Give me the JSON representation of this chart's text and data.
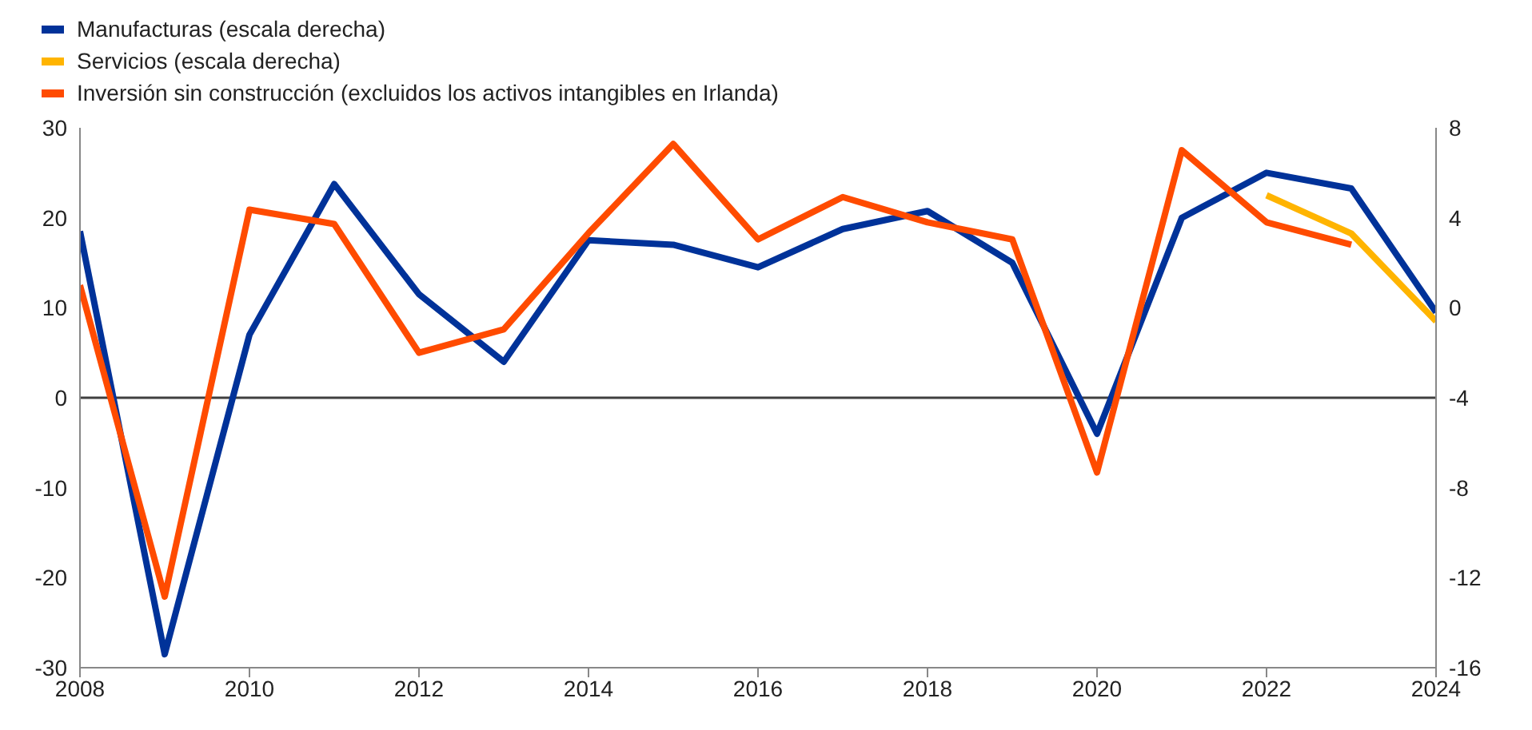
{
  "chart_data": {
    "type": "line",
    "legend": "top left",
    "grid": false,
    "x": [
      2008,
      2009,
      2010,
      2011,
      2012,
      2013,
      2014,
      2015,
      2016,
      2017,
      2018,
      2019,
      2020,
      2021,
      2022,
      2023,
      2024
    ],
    "xlim": [
      2008,
      2024
    ],
    "xticks": [
      2008,
      2010,
      2012,
      2014,
      2016,
      2018,
      2020,
      2022,
      2024
    ],
    "ylim": [
      -30,
      30
    ],
    "yticks": [
      -30,
      -20,
      -10,
      0,
      10,
      20,
      30
    ],
    "y2lim": [
      -16,
      8
    ],
    "y2ticks": [
      -16,
      -12,
      -8,
      -4,
      0,
      4,
      8
    ],
    "ref_lines": [
      {
        "axis": "y",
        "value": 0,
        "color": "#404040"
      }
    ],
    "series": [
      {
        "name": "Manufacturas (escala derecha)",
        "color": "#003299",
        "axis": "y2",
        "values": [
          3.4,
          -15.4,
          -1.2,
          5.5,
          0.6,
          -2.4,
          3.0,
          2.8,
          1.8,
          3.5,
          4.3,
          2.0,
          -5.6,
          4.0,
          6.0,
          5.3,
          -0.2
        ]
      },
      {
        "name": "Servicios (escala derecha)",
        "color": "#ffb400",
        "axis": "y2",
        "values": [
          null,
          null,
          null,
          null,
          null,
          null,
          null,
          null,
          null,
          null,
          null,
          null,
          null,
          null,
          5.0,
          3.3,
          -0.6
        ]
      },
      {
        "name": "Inversión sin construcción (excluidos los activos intangibles en Irlanda)",
        "color": "#ff4b00",
        "values": [
          12.5,
          -22.1,
          20.9,
          19.3,
          5.0,
          7.6,
          18.3,
          28.2,
          17.6,
          22.3,
          19.5,
          17.6,
          -8.3,
          27.5,
          19.5,
          17.0,
          null
        ]
      }
    ]
  }
}
